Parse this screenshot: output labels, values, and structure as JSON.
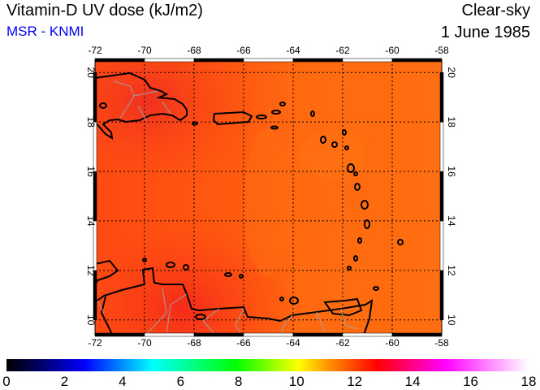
{
  "header": {
    "title": "Vitamin-D UV dose (kJ/m2)",
    "source": "MSR - KNMI",
    "sky_condition": "Clear-sky",
    "date": "1 June 1985"
  },
  "map": {
    "lon_ticks": [
      "-72",
      "-70",
      "-68",
      "-66",
      "-64",
      "-62",
      "-60",
      "-58"
    ],
    "lat_ticks": [
      "20",
      "18",
      "16",
      "14",
      "12",
      "10"
    ],
    "lon_range": [
      -72,
      -58
    ],
    "lat_range": [
      9.4,
      20.5
    ]
  },
  "colorbar": {
    "labels": [
      "0",
      "2",
      "4",
      "6",
      "8",
      "10",
      "12",
      "14",
      "16",
      "18"
    ],
    "range": [
      0,
      18
    ],
    "colors": [
      "#000000",
      "#000060",
      "#0000ff",
      "#00ffff",
      "#00ff00",
      "#ffff00",
      "#ff8c00",
      "#ff0000",
      "#ff00ff",
      "#ffffff"
    ]
  }
}
